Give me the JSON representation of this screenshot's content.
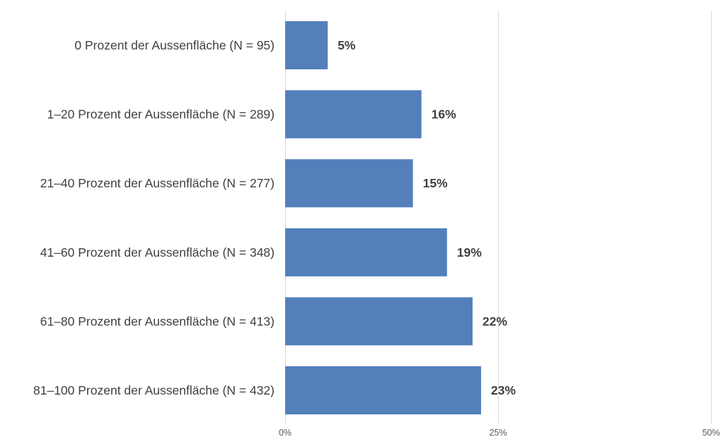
{
  "chart_data": {
    "type": "bar",
    "orientation": "horizontal",
    "categories": [
      "0 Prozent der Aussenfläche (N = 95)",
      "1–20 Prozent der Aussenfläche (N = 289)",
      "21–40 Prozent der Aussenfläche (N = 277)",
      "41–60 Prozent der Aussenfläche (N = 348)",
      "61–80 Prozent der Aussenfläche (N = 413)",
      "81–100 Prozent der Aussenfläche (N = 432)"
    ],
    "values": [
      5,
      16,
      15,
      19,
      22,
      23
    ],
    "value_labels": [
      "5%",
      "16%",
      "15%",
      "19%",
      "22%",
      "23%"
    ],
    "xlim": [
      0,
      50
    ],
    "x_ticks": [
      0,
      25,
      50
    ],
    "x_tick_labels": [
      "0%",
      "25%",
      "50%"
    ],
    "grid": "vertical",
    "legend": "none",
    "bar_color": "#537fbb"
  }
}
